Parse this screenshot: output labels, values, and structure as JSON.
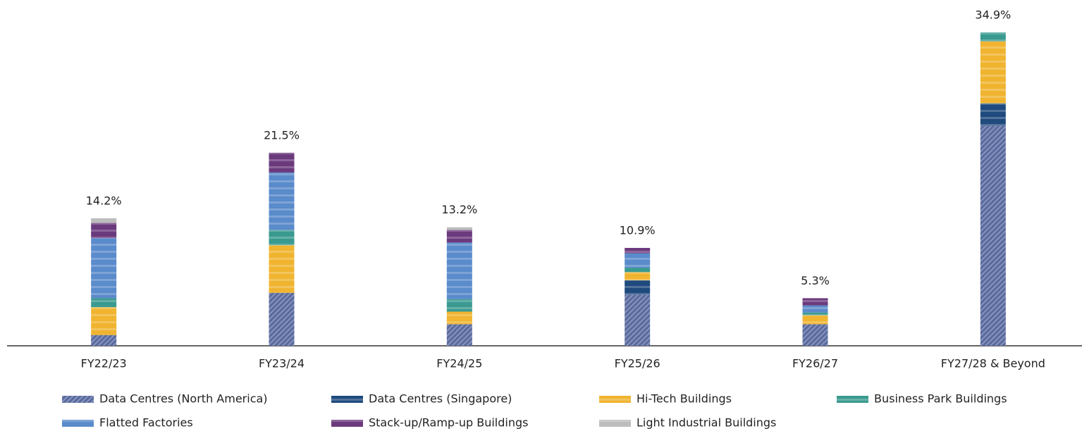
{
  "chart_data": {
    "type": "stacked_bar",
    "categories": [
      "FY22/23",
      "FY23/24",
      "FY24/25",
      "FY25/26",
      "FY26/27",
      "FY27/28 & Beyond"
    ],
    "series": [
      {
        "name": "Data Centres (North America)",
        "color": "#5b6b9e",
        "hatch": true,
        "values": [
          1.2,
          5.9,
          2.4,
          5.7,
          2.4,
          24.5
        ]
      },
      {
        "name": "Data Centres (Singapore)",
        "color": "#1f4a7e",
        "values": [
          0,
          0,
          0,
          1.6,
          0,
          2.5
        ]
      },
      {
        "name": "Hi-Tech Buildings",
        "color": "#f0b430",
        "values": [
          3.1,
          5.3,
          1.4,
          0.9,
          1.0,
          6.9
        ]
      },
      {
        "name": "Business Park Buildings",
        "color": "#3a9a90",
        "values": [
          1.0,
          1.7,
          1.4,
          0.5,
          0.3,
          1.0
        ]
      },
      {
        "name": "Flatted Factories",
        "color": "#5a8bcb",
        "values": [
          6.7,
          6.4,
          6.3,
          1.6,
          0.8,
          0
        ]
      },
      {
        "name": "Stack-up/Ramp-up Buildings",
        "color": "#6b3a7d",
        "values": [
          1.7,
          2.2,
          1.4,
          0.6,
          0.8,
          0
        ]
      },
      {
        "name": "Light Industrial Buildings",
        "color": "#bdbdbd",
        "values": [
          0.5,
          0,
          0.3,
          0,
          0,
          0
        ]
      }
    ],
    "totals": [
      14.2,
      21.5,
      13.2,
      10.9,
      5.3,
      34.9
    ],
    "total_labels": [
      "14.2%",
      "21.5%",
      "13.2%",
      "10.9%",
      "5.3%",
      "34.9%"
    ]
  }
}
